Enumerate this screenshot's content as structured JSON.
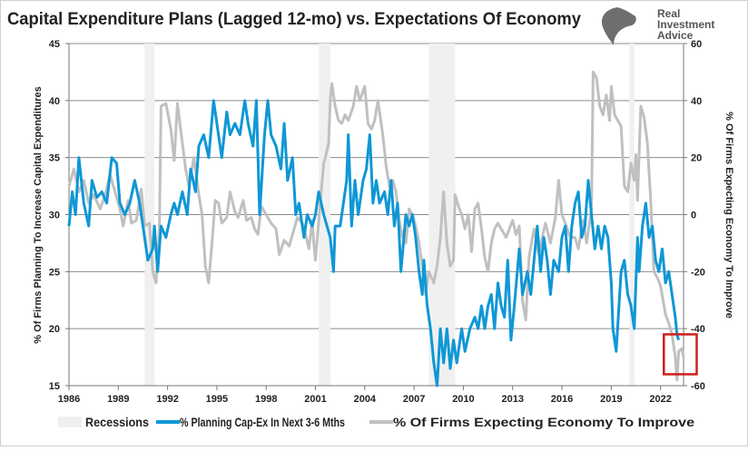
{
  "logo": {
    "line1": "Real",
    "line2": "Investment",
    "line3": "Advice"
  },
  "chart_data": {
    "type": "line",
    "title": "Capital Expenditure Plans (Lagged 12-mo) vs. Expectations Of Economy",
    "ylabel": "% Of Firms Planning To Increase Capital Expenditures",
    "y2label": "% Of Firms Expecting Economy To Improve",
    "xlim": [
      1986,
      2023.4
    ],
    "ylim": [
      15,
      45
    ],
    "y2lim": [
      -60,
      60
    ],
    "xticks": [
      "1986",
      "1989",
      "1992",
      "1995",
      "1998",
      "2001",
      "2004",
      "2007",
      "2010",
      "2013",
      "2016",
      "2019",
      "2022"
    ],
    "yticks": [
      "15",
      "20",
      "25",
      "30",
      "35",
      "40",
      "45"
    ],
    "y2ticks": [
      "-60",
      "-40",
      "-20",
      "0",
      "20",
      "40",
      "60"
    ],
    "grid": true,
    "legend_position": "bottom",
    "legend": [
      "Recessions",
      "% Planning Cap-Ex In Next 3-6 Mths",
      "% Of Firms Expecting Economy To Improve"
    ],
    "recessions": [
      [
        1990.6,
        1991.2
      ],
      [
        2001.2,
        2001.9
      ],
      [
        2007.9,
        2009.5
      ],
      [
        2020.1,
        2020.4
      ]
    ],
    "colors": {
      "capex": "#0f97d6",
      "economy": "#c0c0c0",
      "recession": "#f0f0f0",
      "highlight_box": "#cc1f1f",
      "grid": "#8c8c8c"
    },
    "highlight_box": {
      "x": [
        2022.2,
        2024.2
      ],
      "y2": [
        -56,
        -42
      ]
    },
    "series": [
      {
        "name": "% Planning Cap-Ex In Next 3-6 Mths",
        "axis": "left",
        "x": [
          1986.0,
          1986.2,
          1986.4,
          1986.6,
          1986.9,
          1987.2,
          1987.4,
          1987.7,
          1988.0,
          1988.3,
          1988.6,
          1988.9,
          1989.1,
          1989.4,
          1989.7,
          1990.0,
          1990.3,
          1990.6,
          1990.8,
          1991.1,
          1991.2,
          1991.4,
          1991.6,
          1991.9,
          1992.2,
          1992.4,
          1992.6,
          1992.9,
          1993.2,
          1993.4,
          1993.7,
          1993.9,
          1994.2,
          1994.5,
          1994.8,
          1995.0,
          1995.3,
          1995.6,
          1995.8,
          1996.1,
          1996.4,
          1996.7,
          1996.9,
          1997.2,
          1997.4,
          1997.6,
          1997.9,
          1998.1,
          1998.3,
          1998.6,
          1998.9,
          1999.1,
          1999.3,
          1999.6,
          1999.8,
          2000.0,
          2000.3,
          2000.5,
          2000.8,
          2001.0,
          2001.2,
          2001.5,
          2001.7,
          2001.9,
          2002.1,
          2002.2,
          2002.5,
          2002.7,
          2002.9,
          2003.0,
          2003.2,
          2003.4,
          2003.6,
          2003.9,
          2004.1,
          2004.3,
          2004.5,
          2004.7,
          2004.9,
          2005.2,
          2005.4,
          2005.6,
          2005.8,
          2006.0,
          2006.2,
          2006.5,
          2006.7,
          2006.9,
          2007.1,
          2007.3,
          2007.5,
          2007.6,
          2007.8,
          2008.0,
          2008.2,
          2008.4,
          2008.6,
          2008.8,
          2009.0,
          2009.2,
          2009.4,
          2009.6,
          2009.9,
          2010.1,
          2010.4,
          2010.7,
          2010.9,
          2011.1,
          2011.3,
          2011.5,
          2011.7,
          2011.9,
          2012.1,
          2012.3,
          2012.5,
          2012.7,
          2012.9,
          2013.1,
          2013.4,
          2013.6,
          2013.9,
          2014.1,
          2014.3,
          2014.5,
          2014.7,
          2014.9,
          2015.1,
          2015.3,
          2015.5,
          2015.8,
          2016.0,
          2016.2,
          2016.4,
          2016.6,
          2016.8,
          2017.0,
          2017.2,
          2017.4,
          2017.6,
          2017.8,
          2018.0,
          2018.2,
          2018.4,
          2018.6,
          2018.8,
          2019.0,
          2019.1,
          2019.3,
          2019.6,
          2019.8,
          2020.0,
          2020.2,
          2020.4,
          2020.6,
          2020.7,
          2020.9,
          2021.1,
          2021.3,
          2021.5,
          2021.7,
          2021.9,
          2022.1,
          2022.3,
          2022.5,
          2022.7,
          2022.9,
          2023.0,
          2023.1
        ],
        "values": [
          29,
          32,
          30,
          35,
          31,
          29,
          33,
          31.5,
          32,
          31,
          35,
          34.5,
          31,
          30,
          31,
          33,
          31,
          28,
          26,
          27,
          29,
          25,
          29,
          28,
          30,
          31,
          30,
          32,
          30,
          34,
          32,
          36,
          37,
          35,
          40,
          38,
          35,
          39,
          37,
          38,
          37,
          40,
          38,
          36,
          40,
          30,
          37,
          40,
          37,
          36,
          34,
          38,
          33,
          35,
          30,
          31,
          28,
          30,
          29,
          30,
          32,
          30,
          29,
          28,
          25,
          29,
          29,
          31,
          33,
          37,
          29,
          33,
          30,
          33,
          34,
          37,
          31,
          33,
          31,
          32,
          30,
          33,
          29,
          31,
          25,
          30,
          29,
          30,
          28,
          25,
          23,
          26,
          22,
          20,
          17,
          15,
          20,
          17,
          20,
          16.5,
          19,
          17,
          20,
          18,
          20,
          21,
          20,
          22,
          20,
          22,
          23,
          20,
          24,
          22,
          21,
          26,
          19,
          22,
          27,
          23,
          25,
          23,
          26,
          29,
          25,
          28,
          26,
          23,
          26,
          25,
          28,
          29,
          25,
          29,
          31,
          32,
          28,
          29,
          33,
          30,
          27,
          29,
          27,
          29,
          28,
          24,
          20,
          18,
          25,
          26,
          23,
          22,
          20,
          28,
          25,
          29,
          31,
          28,
          29,
          26,
          25,
          27,
          24,
          25,
          23,
          21,
          19.5,
          19
        ]
      },
      {
        "name": "% Of Firms Expecting Economy To Improve",
        "axis": "right",
        "x": [
          1986.0,
          1986.3,
          1986.6,
          1986.9,
          1987.2,
          1987.5,
          1987.9,
          1988.2,
          1988.5,
          1988.8,
          1989.1,
          1989.3,
          1989.6,
          1989.8,
          1990.1,
          1990.4,
          1990.6,
          1990.9,
          1991.1,
          1991.3,
          1991.5,
          1991.6,
          1991.9,
          1992.2,
          1992.4,
          1992.6,
          1992.9,
          1993.1,
          1993.3,
          1993.6,
          1993.9,
          1994.1,
          1994.3,
          1994.5,
          1994.7,
          1994.9,
          1995.1,
          1995.3,
          1995.6,
          1995.8,
          1996.1,
          1996.3,
          1996.6,
          1996.8,
          1997.1,
          1997.3,
          1997.5,
          1997.7,
          1998.0,
          1998.3,
          1998.6,
          1998.8,
          1999.1,
          1999.4,
          1999.6,
          1999.9,
          2000.2,
          2000.4,
          2000.6,
          2000.8,
          2000.9,
          2001.0,
          2001.3,
          2001.5,
          2001.6,
          2001.8,
          2001.9,
          2002.0,
          2002.2,
          2002.4,
          2002.6,
          2002.8,
          2003.0,
          2003.3,
          2003.5,
          2003.7,
          2004.0,
          2004.2,
          2004.4,
          2004.6,
          2004.8,
          2005.1,
          2005.3,
          2005.5,
          2005.7,
          2005.9,
          2006.1,
          2006.3,
          2006.5,
          2006.7,
          2006.9,
          2007.1,
          2007.3,
          2007.5,
          2007.7,
          2007.9,
          2008.2,
          2008.4,
          2008.6,
          2008.8,
          2009.0,
          2009.2,
          2009.4,
          2009.5,
          2009.7,
          2009.9,
          2010.1,
          2010.3,
          2010.5,
          2010.7,
          2010.9,
          2011.1,
          2011.3,
          2011.5,
          2011.7,
          2011.9,
          2012.1,
          2012.3,
          2012.6,
          2013.0,
          2013.2,
          2013.4,
          2013.6,
          2013.8,
          2014.0,
          2014.3,
          2014.6,
          2014.8,
          2015.0,
          2015.3,
          2015.6,
          2015.8,
          2016.0,
          2016.2,
          2016.5,
          2016.8,
          2017.0,
          2017.3,
          2017.5,
          2017.8,
          2017.9,
          2018.1,
          2018.3,
          2018.5,
          2018.7,
          2018.9,
          2019.0,
          2019.2,
          2019.4,
          2019.6,
          2019.8,
          2020.0,
          2020.2,
          2020.4,
          2020.5,
          2020.6,
          2020.8,
          2021.0,
          2021.2,
          2021.4,
          2021.6,
          2021.8,
          2022.0,
          2022.3,
          2022.5,
          2022.7,
          2022.9,
          2023.0,
          2023.1,
          2023.3,
          2023.4
        ],
        "values": [
          10,
          16,
          8,
          12,
          4,
          7,
          2,
          7,
          14,
          8,
          2,
          -4,
          5,
          -3,
          -2,
          9,
          -4,
          -3,
          -20,
          -24,
          -5,
          38,
          39,
          30,
          19,
          39,
          25,
          16,
          10,
          20,
          7,
          0,
          -18,
          -24,
          -10,
          5,
          4,
          -3,
          -1,
          8,
          1,
          -1,
          5,
          -2,
          -1,
          -5,
          -7,
          3,
          0,
          -3,
          -5,
          -14,
          -9,
          -11,
          -7,
          -1,
          -3,
          -7,
          -12,
          -2,
          -10,
          -16,
          5,
          18,
          20,
          25,
          40,
          46,
          38,
          33,
          32,
          35,
          33,
          38,
          45,
          40,
          45,
          32,
          30,
          33,
          40,
          28,
          17,
          10,
          12,
          8,
          -2,
          -8,
          -10,
          2,
          0,
          -4,
          -10,
          -18,
          -28,
          -20,
          -24,
          -18,
          -8,
          8,
          -10,
          -18,
          -16,
          7,
          3,
          0,
          -5,
          0,
          -13,
          2,
          4,
          -5,
          -15,
          -20,
          -10,
          -5,
          -3,
          -5,
          -8,
          -2,
          -7,
          -4,
          -30,
          -37,
          -15,
          -5,
          -14,
          -8,
          -3,
          -10,
          -1,
          12,
          0,
          -3,
          -8,
          -8,
          -12,
          -2,
          -10,
          2,
          50,
          48,
          38,
          35,
          42,
          33,
          45,
          35,
          33,
          31,
          10,
          8,
          18,
          12,
          21,
          5,
          38,
          34,
          25,
          5,
          -20,
          -22,
          -25,
          -35,
          -38,
          -42,
          -50,
          -58,
          -48,
          -47,
          -50
        ]
      }
    ]
  }
}
